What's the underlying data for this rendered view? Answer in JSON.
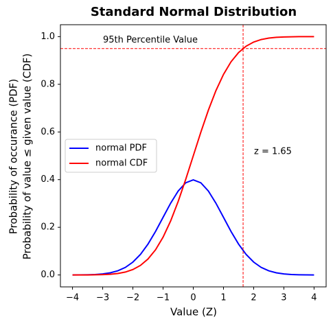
{
  "chart_data": {
    "type": "line",
    "title": "Standard Normal Distribution",
    "xlabel": "Value (Z)",
    "ylabel": [
      "Probability of occurance (PDF)",
      "Probability of value ≤ given value (CDF)"
    ],
    "x": [
      -4,
      -3.75,
      -3.5,
      -3.25,
      -3,
      -2.75,
      -2.5,
      -2.25,
      -2,
      -1.75,
      -1.5,
      -1.25,
      -1,
      -0.75,
      -0.5,
      -0.25,
      0,
      0.25,
      0.5,
      0.75,
      1,
      1.25,
      1.5,
      1.75,
      2,
      2.25,
      2.5,
      2.75,
      3,
      3.25,
      3.5,
      3.75,
      4
    ],
    "series": [
      {
        "name": "normal PDF",
        "color": "#0000ff",
        "values": [
          0.0001,
          0.0004,
          0.0009,
          0.002,
          0.0044,
          0.0091,
          0.0175,
          0.0317,
          0.054,
          0.0863,
          0.1295,
          0.1826,
          0.242,
          0.3011,
          0.3521,
          0.3867,
          0.3989,
          0.3867,
          0.3521,
          0.3011,
          0.242,
          0.1826,
          0.1295,
          0.0863,
          0.054,
          0.0317,
          0.0175,
          0.0091,
          0.0044,
          0.002,
          0.0009,
          0.0004,
          0.0001
        ]
      },
      {
        "name": "normal CDF",
        "color": "#ff0000",
        "values": [
          0.0,
          0.0001,
          0.0002,
          0.0006,
          0.0013,
          0.003,
          0.0062,
          0.0122,
          0.0228,
          0.0401,
          0.0668,
          0.1056,
          0.1587,
          0.2266,
          0.3085,
          0.4013,
          0.5,
          0.5987,
          0.6915,
          0.7734,
          0.8413,
          0.8944,
          0.9332,
          0.9599,
          0.9772,
          0.9878,
          0.9938,
          0.997,
          0.9987,
          0.9994,
          0.9998,
          0.9999,
          1.0
        ]
      }
    ],
    "hline": {
      "value": 0.95,
      "label": "95th Percentile Value",
      "color": "#ff0000"
    },
    "vline": {
      "value": 1.65,
      "label": "z = 1.65",
      "color": "#ff0000"
    },
    "xlim": [
      -4.4,
      4.4
    ],
    "ylim": [
      -0.05,
      1.05
    ],
    "xticks": [
      {
        "value": -4,
        "label": "−4"
      },
      {
        "value": -3,
        "label": "−3"
      },
      {
        "value": -2,
        "label": "−2"
      },
      {
        "value": -1,
        "label": "−1"
      },
      0,
      1,
      2,
      3,
      4
    ],
    "yticks": [
      {
        "value": 0,
        "label": "0.0"
      },
      0.2,
      0.4,
      0.6,
      0.8,
      {
        "value": 1,
        "label": "1.0"
      }
    ],
    "grid": false,
    "legend": "center left"
  }
}
